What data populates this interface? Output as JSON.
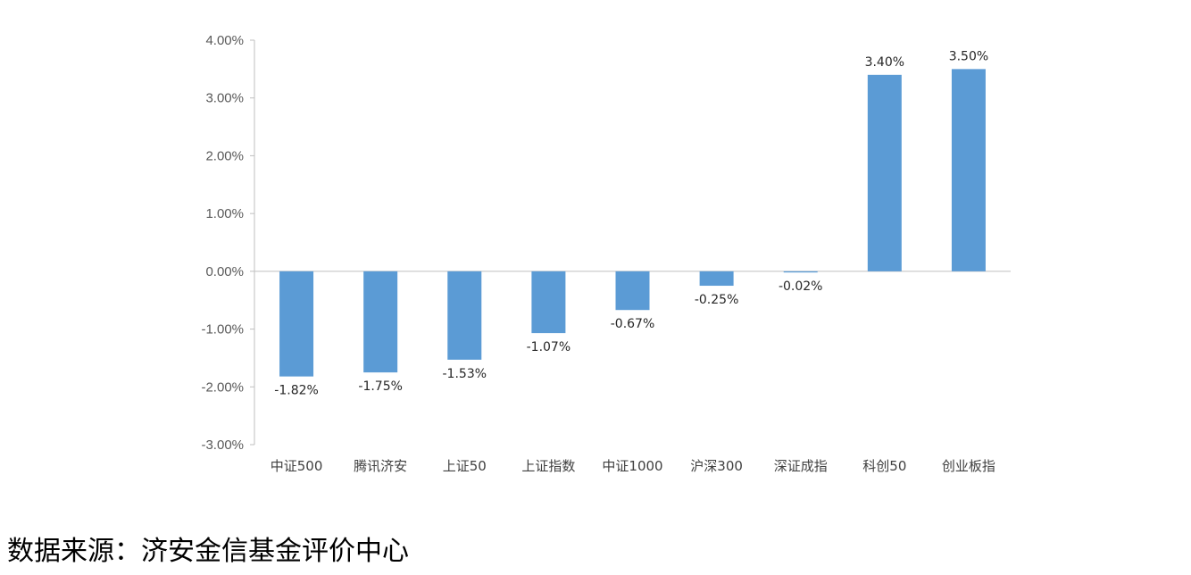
{
  "chart_data": {
    "type": "bar",
    "title": "",
    "xlabel": "",
    "ylabel": "",
    "categories": [
      "中证500",
      "腾讯济安",
      "上证50",
      "上证指数",
      "中证1000",
      "沪深300",
      "深证成指",
      "科创50",
      "创业板指"
    ],
    "values": [
      -1.82,
      -1.75,
      -1.53,
      -1.07,
      -0.67,
      -0.25,
      -0.02,
      3.4,
      3.5
    ],
    "value_labels": [
      "-1.82%",
      "-1.75%",
      "-1.53%",
      "-1.07%",
      "-0.67%",
      "-0.25%",
      "-0.02%",
      "3.40%",
      "3.50%"
    ],
    "ylim": [
      -3,
      4
    ],
    "yticks": [
      4,
      3,
      2,
      1,
      0,
      -1,
      -2,
      -3
    ],
    "ytick_labels": [
      "4.00%",
      "3.00%",
      "2.00%",
      "1.00%",
      "0.00%",
      "-1.00%",
      "-2.00%",
      "-3.00%"
    ],
    "bar_color": "#5b9bd5",
    "grid": false,
    "legend": "none"
  },
  "footer": {
    "source": "数据来源：济安金信基金评价中心"
  }
}
